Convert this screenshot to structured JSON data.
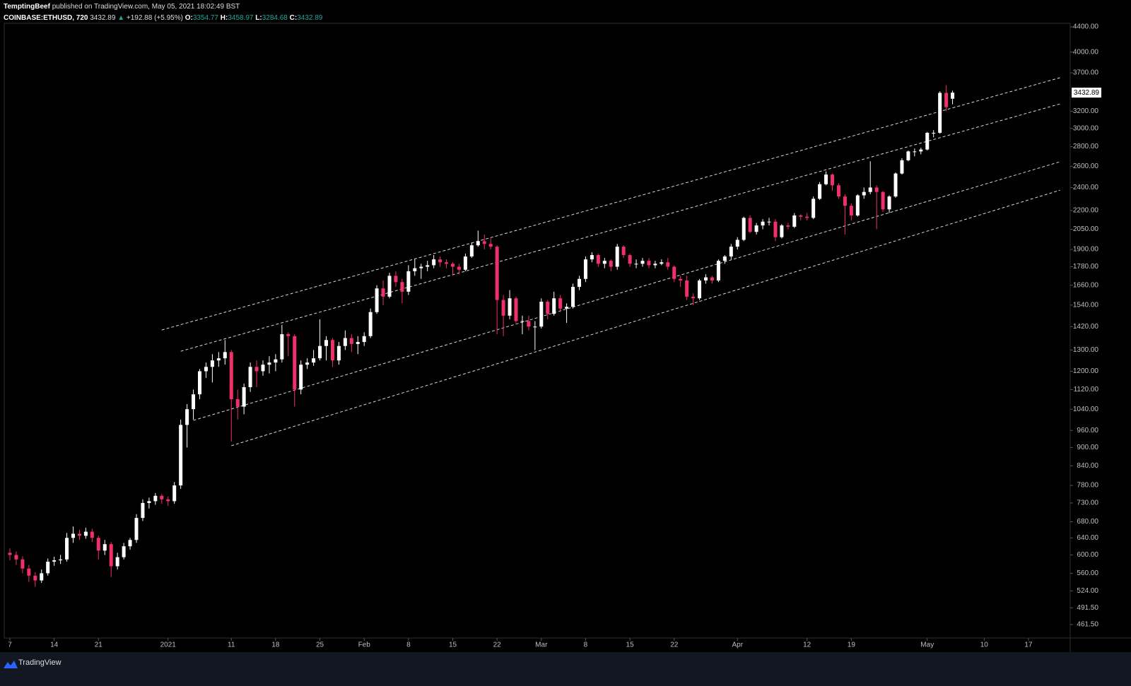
{
  "header": {
    "author": "TemptingBeef",
    "published": "published on TradingView.com, May 05, 2021 18:02:49 BST",
    "symbol": "COINBASE:ETHUSD, 720",
    "arrow": "▲",
    "change": "+192.88 (+5.95%)",
    "o": "O:",
    "h": "H:",
    "l": "L:",
    "c": "C:"
  },
  "footer": {
    "brand": "TradingView"
  },
  "chart_data": {
    "type": "candlestick",
    "log_scale": true,
    "up_color": "#ffffff",
    "down_color": "#f0306a",
    "line_color": "#d8d8d8",
    "ylim": [
      438.7,
      4459
    ],
    "yticks": [
      {
        "value": 461.5,
        "label": "461.50"
      },
      {
        "value": 491.5,
        "label": "491.50"
      },
      {
        "value": 524,
        "label": "524.00"
      },
      {
        "value": 560,
        "label": "560.00"
      },
      {
        "value": 600,
        "label": "600.00"
      },
      {
        "value": 640,
        "label": "640.00"
      },
      {
        "value": 680,
        "label": "680.00"
      },
      {
        "value": 730,
        "label": "730.00"
      },
      {
        "value": 780,
        "label": "780.00"
      },
      {
        "value": 840,
        "label": "840.00"
      },
      {
        "value": 900,
        "label": "900.00"
      },
      {
        "value": 960,
        "label": "960.00"
      },
      {
        "value": 1040,
        "label": "1040.00"
      },
      {
        "value": 1120,
        "label": "1120.00"
      },
      {
        "value": 1200,
        "label": "1200.00"
      },
      {
        "value": 1300,
        "label": "1300.00"
      },
      {
        "value": 1420,
        "label": "1420.00"
      },
      {
        "value": 1540,
        "label": "1540.00"
      },
      {
        "value": 1660,
        "label": "1660.00"
      },
      {
        "value": 1780,
        "label": "1780.00"
      },
      {
        "value": 1900,
        "label": "1900.00"
      },
      {
        "value": 2050,
        "label": "2050.00"
      },
      {
        "value": 2200,
        "label": "2200.00"
      },
      {
        "value": 2400,
        "label": "2400.00"
      },
      {
        "value": 2600,
        "label": "2600.00"
      },
      {
        "value": 2800,
        "label": "2800.00"
      },
      {
        "value": 3000,
        "label": "3000.00"
      },
      {
        "value": 3200,
        "label": "3200.00"
      },
      {
        "value": 3700,
        "label": "3700.00"
      },
      {
        "value": 4000,
        "label": "4000.00"
      },
      {
        "value": 4400,
        "label": "4400.00"
      }
    ],
    "xticks": [
      {
        "value": "Dec 7",
        "label": "7"
      },
      {
        "value": "Dec 14",
        "label": "14"
      },
      {
        "value": "Dec 21",
        "label": "21"
      },
      {
        "value": "Jan 1",
        "label": "2021"
      },
      {
        "value": "Jan 11",
        "label": "11"
      },
      {
        "value": "Jan 18",
        "label": "18"
      },
      {
        "value": "Jan 25",
        "label": "25"
      },
      {
        "value": "Feb 1",
        "label": "Feb"
      },
      {
        "value": "Feb 8",
        "label": "8"
      },
      {
        "value": "Feb 15",
        "label": "15"
      },
      {
        "value": "Feb 22",
        "label": "22"
      },
      {
        "value": "Mar 1",
        "label": "Mar"
      },
      {
        "value": "Mar 8",
        "label": "8"
      },
      {
        "value": "Mar 15",
        "label": "15"
      },
      {
        "value": "Mar 22",
        "label": "22"
      },
      {
        "value": "Apr 1",
        "label": "Apr"
      },
      {
        "value": "Apr 12",
        "label": "12"
      },
      {
        "value": "Apr 19",
        "label": "19"
      },
      {
        "value": "May 1",
        "label": "May"
      },
      {
        "value": "May 10",
        "label": "10"
      },
      {
        "value": "May 17",
        "label": "17"
      }
    ],
    "x": [
      "Dec 7",
      "Dec 8",
      "Dec 9",
      "Dec 10",
      "Dec 11",
      "Dec 12",
      "Dec 13",
      "Dec 14",
      "Dec 15",
      "Dec 16",
      "Dec 17",
      "Dec 18",
      "Dec 19",
      "Dec 20",
      "Dec 21",
      "Dec 22",
      "Dec 23",
      "Dec 24",
      "Dec 25",
      "Dec 26",
      "Dec 27",
      "Dec 28",
      "Dec 29",
      "Dec 30",
      "Dec 31",
      "Jan 1",
      "Jan 2",
      "Jan 3",
      "Jan 4",
      "Jan 5",
      "Jan 6",
      "Jan 7",
      "Jan 8",
      "Jan 9",
      "Jan 10",
      "Jan 11",
      "Jan 12",
      "Jan 13",
      "Jan 14",
      "Jan 15",
      "Jan 16",
      "Jan 17",
      "Jan 18",
      "Jan 19",
      "Jan 20",
      "Jan 21",
      "Jan 22",
      "Jan 23",
      "Jan 24",
      "Jan 25",
      "Jan 26",
      "Jan 27",
      "Jan 28",
      "Jan 29",
      "Jan 30",
      "Jan 31",
      "Feb 1",
      "Feb 2",
      "Feb 3",
      "Feb 4",
      "Feb 5",
      "Feb 6",
      "Feb 7",
      "Feb 8",
      "Feb 9",
      "Feb 10",
      "Feb 11",
      "Feb 12",
      "Feb 13",
      "Feb 14",
      "Feb 15",
      "Feb 16",
      "Feb 17",
      "Feb 18",
      "Feb 19",
      "Feb 20",
      "Feb 21",
      "Feb 22",
      "Feb 23",
      "Feb 24",
      "Feb 25",
      "Feb 26",
      "Feb 27",
      "Feb 28",
      "Mar 1",
      "Mar 2",
      "Mar 3",
      "Mar 4",
      "Mar 5",
      "Mar 6",
      "Mar 7",
      "Mar 8",
      "Mar 9",
      "Mar 10",
      "Mar 11",
      "Mar 12",
      "Mar 13",
      "Mar 14",
      "Mar 15",
      "Mar 16",
      "Mar 17",
      "Mar 18",
      "Mar 19",
      "Mar 20",
      "Mar 21",
      "Mar 22",
      "Mar 23",
      "Mar 24",
      "Mar 25",
      "Mar 26",
      "Mar 27",
      "Mar 28",
      "Mar 29",
      "Mar 30",
      "Mar 31",
      "Apr 1",
      "Apr 2",
      "Apr 3",
      "Apr 4",
      "Apr 5",
      "Apr 6",
      "Apr 7",
      "Apr 8",
      "Apr 9",
      "Apr 10",
      "Apr 11",
      "Apr 12",
      "Apr 13",
      "Apr 14",
      "Apr 15",
      "Apr 16",
      "Apr 17",
      "Apr 18",
      "Apr 19",
      "Apr 20",
      "Apr 21",
      "Apr 22",
      "Apr 23",
      "Apr 24",
      "Apr 25",
      "Apr 26",
      "Apr 27",
      "Apr 28",
      "Apr 29",
      "Apr 30",
      "May 1",
      "May 2",
      "May 3",
      "May 4",
      "May 5"
    ],
    "ohlc": [
      [
        605,
        615,
        588,
        600
      ],
      [
        600,
        608,
        578,
        590
      ],
      [
        590,
        597,
        560,
        570
      ],
      [
        570,
        578,
        542,
        555
      ],
      [
        555,
        562,
        532,
        545
      ],
      [
        545,
        568,
        540,
        560
      ],
      [
        560,
        592,
        555,
        585
      ],
      [
        585,
        596,
        576,
        588
      ],
      [
        588,
        600,
        580,
        590
      ],
      [
        590,
        652,
        585,
        640
      ],
      [
        640,
        668,
        628,
        650
      ],
      [
        650,
        660,
        635,
        645
      ],
      [
        645,
        665,
        638,
        655
      ],
      [
        655,
        662,
        630,
        640
      ],
      [
        640,
        645,
        590,
        610
      ],
      [
        610,
        635,
        600,
        625
      ],
      [
        625,
        630,
        552,
        575
      ],
      [
        575,
        605,
        568,
        595
      ],
      [
        595,
        628,
        590,
        620
      ],
      [
        620,
        640,
        612,
        635
      ],
      [
        635,
        700,
        628,
        690
      ],
      [
        690,
        740,
        682,
        730
      ],
      [
        730,
        745,
        715,
        735
      ],
      [
        735,
        758,
        725,
        750
      ],
      [
        750,
        755,
        728,
        740
      ],
      [
        740,
        748,
        722,
        735
      ],
      [
        735,
        790,
        728,
        780
      ],
      [
        780,
        1000,
        770,
        980
      ],
      [
        980,
        1060,
        900,
        1040
      ],
      [
        1040,
        1120,
        1000,
        1100
      ],
      [
        1100,
        1210,
        1080,
        1200
      ],
      [
        1200,
        1240,
        1170,
        1220
      ],
      [
        1220,
        1280,
        1150,
        1250
      ],
      [
        1250,
        1290,
        1220,
        1260
      ],
      [
        1260,
        1350,
        1230,
        1290
      ],
      [
        1290,
        1300,
        920,
        1080
      ],
      [
        1080,
        1120,
        1000,
        1050
      ],
      [
        1050,
        1145,
        1020,
        1130
      ],
      [
        1130,
        1240,
        1110,
        1220
      ],
      [
        1220,
        1250,
        1130,
        1200
      ],
      [
        1200,
        1250,
        1180,
        1230
      ],
      [
        1230,
        1270,
        1190,
        1240
      ],
      [
        1240,
        1280,
        1200,
        1255
      ],
      [
        1255,
        1430,
        1240,
        1380
      ],
      [
        1380,
        1390,
        1270,
        1370
      ],
      [
        1370,
        1380,
        1050,
        1120
      ],
      [
        1120,
        1250,
        1100,
        1230
      ],
      [
        1230,
        1260,
        1210,
        1240
      ],
      [
        1240,
        1300,
        1225,
        1260
      ],
      [
        1260,
        1460,
        1250,
        1320
      ],
      [
        1320,
        1370,
        1250,
        1350
      ],
      [
        1350,
        1360,
        1220,
        1250
      ],
      [
        1250,
        1340,
        1230,
        1320
      ],
      [
        1320,
        1400,
        1300,
        1360
      ],
      [
        1360,
        1380,
        1290,
        1330
      ],
      [
        1330,
        1370,
        1280,
        1340
      ],
      [
        1340,
        1390,
        1320,
        1370
      ],
      [
        1370,
        1520,
        1360,
        1500
      ],
      [
        1500,
        1660,
        1490,
        1640
      ],
      [
        1640,
        1690,
        1540,
        1590
      ],
      [
        1590,
        1740,
        1580,
        1720
      ],
      [
        1720,
        1750,
        1650,
        1680
      ],
      [
        1680,
        1700,
        1550,
        1620
      ],
      [
        1620,
        1790,
        1600,
        1750
      ],
      [
        1750,
        1830,
        1720,
        1770
      ],
      [
        1770,
        1800,
        1700,
        1780
      ],
      [
        1780,
        1820,
        1750,
        1790
      ],
      [
        1790,
        1860,
        1770,
        1830
      ],
      [
        1830,
        1850,
        1780,
        1810
      ],
      [
        1810,
        1830,
        1770,
        1800
      ],
      [
        1800,
        1810,
        1720,
        1780
      ],
      [
        1780,
        1800,
        1730,
        1760
      ],
      [
        1760,
        1870,
        1750,
        1850
      ],
      [
        1850,
        1950,
        1840,
        1930
      ],
      [
        1930,
        2040,
        1920,
        1960
      ],
      [
        1960,
        2010,
        1900,
        1940
      ],
      [
        1940,
        1980,
        1900,
        1920
      ],
      [
        1920,
        1930,
        1380,
        1570
      ],
      [
        1570,
        1600,
        1370,
        1480
      ],
      [
        1480,
        1630,
        1460,
        1580
      ],
      [
        1580,
        1590,
        1440,
        1450
      ],
      [
        1450,
        1480,
        1380,
        1450
      ],
      [
        1450,
        1480,
        1400,
        1420
      ],
      [
        1420,
        1450,
        1300,
        1420
      ],
      [
        1420,
        1580,
        1410,
        1560
      ],
      [
        1560,
        1570,
        1460,
        1490
      ],
      [
        1490,
        1620,
        1480,
        1580
      ],
      [
        1580,
        1600,
        1500,
        1520
      ],
      [
        1520,
        1550,
        1440,
        1530
      ],
      [
        1530,
        1670,
        1520,
        1650
      ],
      [
        1650,
        1720,
        1630,
        1700
      ],
      [
        1700,
        1850,
        1680,
        1830
      ],
      [
        1830,
        1880,
        1810,
        1860
      ],
      [
        1860,
        1870,
        1780,
        1800
      ],
      [
        1800,
        1840,
        1770,
        1820
      ],
      [
        1820,
        1830,
        1750,
        1780
      ],
      [
        1780,
        1940,
        1760,
        1920
      ],
      [
        1920,
        1930,
        1840,
        1860
      ],
      [
        1860,
        1870,
        1780,
        1800
      ],
      [
        1800,
        1830,
        1770,
        1800
      ],
      [
        1800,
        1840,
        1780,
        1820
      ],
      [
        1820,
        1840,
        1770,
        1790
      ],
      [
        1790,
        1820,
        1770,
        1800
      ],
      [
        1800,
        1830,
        1790,
        1810
      ],
      [
        1810,
        1840,
        1760,
        1780
      ],
      [
        1780,
        1790,
        1680,
        1700
      ],
      [
        1700,
        1720,
        1650,
        1690
      ],
      [
        1690,
        1720,
        1570,
        1590
      ],
      [
        1590,
        1610,
        1540,
        1580
      ],
      [
        1580,
        1700,
        1570,
        1690
      ],
      [
        1690,
        1730,
        1670,
        1710
      ],
      [
        1710,
        1720,
        1670,
        1690
      ],
      [
        1690,
        1830,
        1680,
        1820
      ],
      [
        1820,
        1860,
        1800,
        1850
      ],
      [
        1850,
        1940,
        1830,
        1920
      ],
      [
        1920,
        1990,
        1900,
        1970
      ],
      [
        1970,
        2150,
        1960,
        2140
      ],
      [
        2140,
        2160,
        2020,
        2030
      ],
      [
        2030,
        2100,
        2010,
        2080
      ],
      [
        2080,
        2130,
        2050,
        2110
      ],
      [
        2110,
        2140,
        2080,
        2110
      ],
      [
        2110,
        2130,
        1960,
        1990
      ],
      [
        1990,
        2090,
        1980,
        2080
      ],
      [
        2080,
        2100,
        2050,
        2070
      ],
      [
        2070,
        2180,
        2060,
        2160
      ],
      [
        2160,
        2170,
        2120,
        2150
      ],
      [
        2150,
        2180,
        2120,
        2140
      ],
      [
        2140,
        2320,
        2130,
        2300
      ],
      [
        2300,
        2450,
        2290,
        2430
      ],
      [
        2430,
        2550,
        2420,
        2520
      ],
      [
        2520,
        2530,
        2370,
        2420
      ],
      [
        2420,
        2440,
        2300,
        2320
      ],
      [
        2320,
        2340,
        2010,
        2240
      ],
      [
        2240,
        2260,
        2120,
        2160
      ],
      [
        2160,
        2340,
        2150,
        2330
      ],
      [
        2330,
        2400,
        2300,
        2360
      ],
      [
        2360,
        2650,
        2340,
        2400
      ],
      [
        2400,
        2420,
        2050,
        2360
      ],
      [
        2360,
        2370,
        2190,
        2210
      ],
      [
        2210,
        2330,
        2180,
        2320
      ],
      [
        2320,
        2540,
        2310,
        2530
      ],
      [
        2530,
        2680,
        2520,
        2660
      ],
      [
        2660,
        2760,
        2650,
        2750
      ],
      [
        2750,
        2780,
        2700,
        2750
      ],
      [
        2750,
        2790,
        2720,
        2770
      ],
      [
        2770,
        2960,
        2760,
        2950
      ],
      [
        2950,
        2980,
        2900,
        2950
      ],
      [
        2950,
        3450,
        2940,
        3430
      ],
      [
        3430,
        3530,
        3200,
        3250
      ],
      [
        3354.77,
        3458.97,
        3284.68,
        3432.89
      ]
    ],
    "trend_lines": [
      {
        "x": [
          "Dec 31",
          "May 22"
        ],
        "values": [
          1402,
          3632
        ]
      },
      {
        "x": [
          "Jan 3",
          "May 22"
        ],
        "values": [
          1294,
          3290
        ]
      },
      {
        "x": [
          "Jan 5",
          "May 22"
        ],
        "values": [
          997,
          2645
        ]
      },
      {
        "x": [
          "Jan 11",
          "May 22"
        ],
        "values": [
          906,
          2376
        ]
      }
    ]
  }
}
